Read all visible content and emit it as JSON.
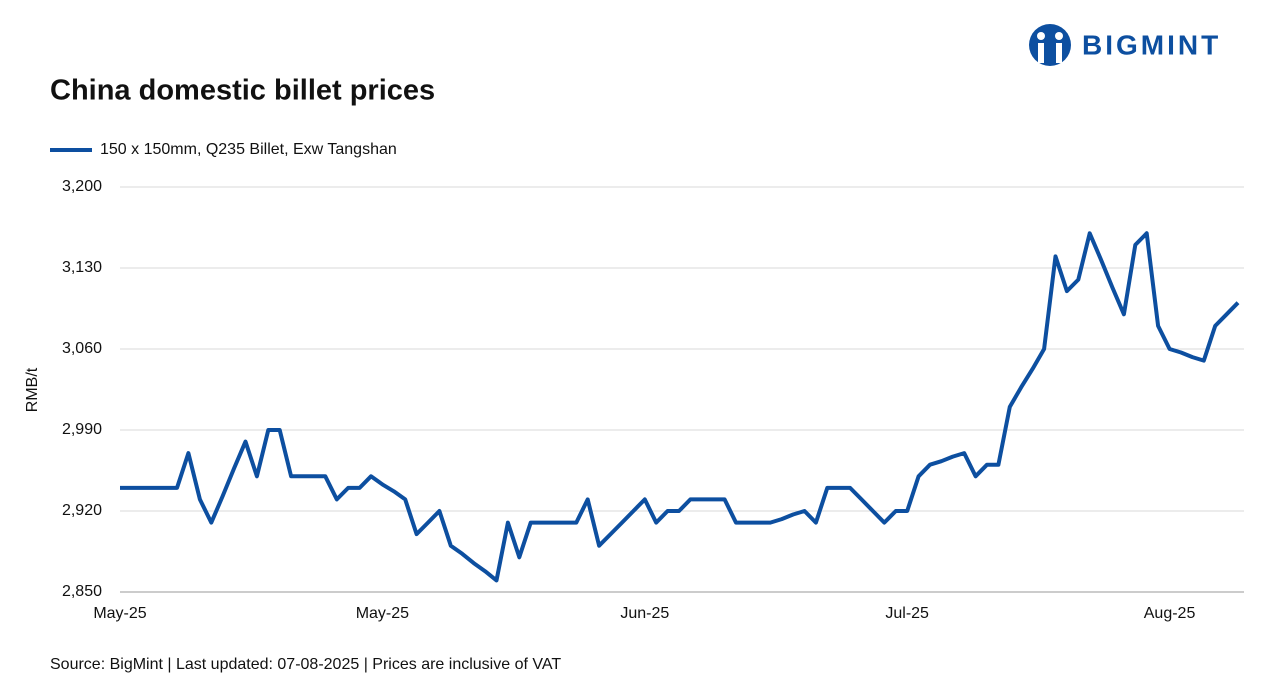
{
  "chart_data": {
    "type": "line",
    "logo": "BIGMINT",
    "title": "China domestic billet prices",
    "y_label": "RMB/t",
    "source": "Source: BigMint | Last updated: 07-08-2025 | Prices are inclusive of VAT",
    "ylim": [
      2850,
      3200
    ],
    "yticks": [
      {
        "value": 2850,
        "label": "2,850"
      },
      {
        "value": 2920,
        "label": "2,920"
      },
      {
        "value": 2990,
        "label": "2,990"
      },
      {
        "value": 3060,
        "label": "3,060"
      },
      {
        "value": 3130,
        "label": "3,130"
      },
      {
        "value": 3200,
        "label": "3,200"
      }
    ],
    "grid": true,
    "legend": "top-left",
    "categories": [
      "May-25",
      null,
      null,
      null,
      null,
      null,
      null,
      null,
      null,
      null,
      null,
      null,
      null,
      null,
      null,
      null,
      null,
      null,
      null,
      null,
      null,
      null,
      null,
      "May-25",
      null,
      null,
      null,
      null,
      null,
      null,
      null,
      null,
      null,
      null,
      null,
      null,
      null,
      null,
      null,
      null,
      null,
      null,
      null,
      null,
      null,
      null,
      "Jun-25",
      null,
      null,
      null,
      null,
      null,
      null,
      null,
      null,
      null,
      null,
      null,
      null,
      null,
      null,
      null,
      null,
      null,
      null,
      null,
      null,
      null,
      null,
      "Jul-25",
      null,
      null,
      null,
      null,
      null,
      null,
      null,
      null,
      null,
      null,
      null,
      null,
      null,
      null,
      null,
      null,
      null,
      null,
      null,
      null,
      null,
      null,
      "Aug-25",
      null,
      null,
      null,
      null,
      null,
      null
    ],
    "series": [
      {
        "name": "150 x 150mm, Q235 Billet, Exw Tangshan",
        "color": "#0d4fa0",
        "values": [
          2940,
          2940,
          2940,
          2940,
          2940,
          2940,
          2970,
          2930,
          2910,
          2933,
          2957,
          2980,
          2950,
          2990,
          2990,
          2950,
          2950,
          2950,
          2950,
          2930,
          2940,
          2940,
          2950,
          2943,
          2937,
          2930,
          2900,
          2910,
          2920,
          2890,
          2883,
          2875,
          2868,
          2860,
          2910,
          2880,
          2910,
          2910,
          2910,
          2910,
          2910,
          2930,
          2890,
          2900,
          2910,
          2920,
          2930,
          2910,
          2920,
          2920,
          2930,
          2930,
          2930,
          2930,
          2910,
          2910,
          2910,
          2910,
          2913,
          2917,
          2920,
          2910,
          2940,
          2940,
          2940,
          2930,
          2920,
          2910,
          2920,
          2920,
          2950,
          2960,
          2963,
          2967,
          2970,
          2950,
          2960,
          2960,
          3010,
          3027,
          3043,
          3060,
          3140,
          3110,
          3120,
          3160,
          3137,
          3113,
          3090,
          3150,
          3160,
          3080,
          3060,
          3057,
          3053,
          3050,
          3080,
          3090,
          3100
        ]
      }
    ]
  }
}
